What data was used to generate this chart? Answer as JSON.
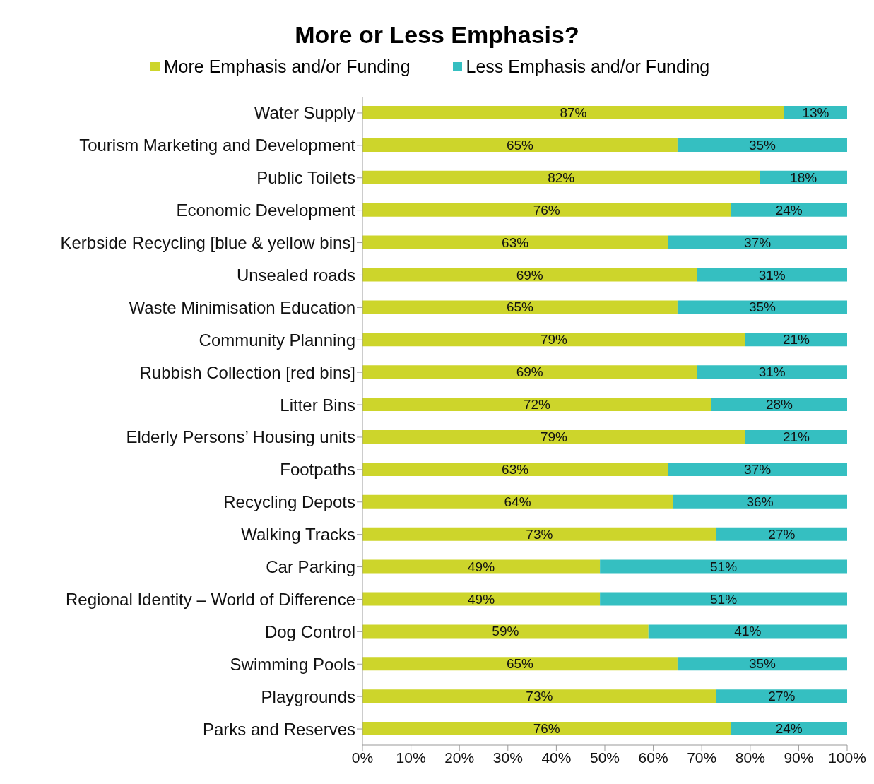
{
  "chart_data": {
    "type": "bar",
    "title": "More or Less Emphasis?",
    "orientation": "horizontal",
    "stacked": true,
    "legend": "top",
    "grid": false,
    "categories": [
      "Water Supply",
      "Tourism Marketing and Development",
      "Public Toilets",
      "Economic Development",
      "Kerbside Recycling [blue & yellow bins]",
      "Unsealed roads",
      "Waste Minimisation Education",
      "Community Planning",
      "Rubbish Collection [red bins]",
      "Litter Bins",
      "Elderly Persons’ Housing units",
      "Footpaths",
      "Recycling Depots",
      "Walking Tracks",
      "Car Parking",
      "Regional Identity – World of Difference",
      "Dog Control",
      "Swimming Pools",
      "Playgrounds",
      "Parks and Reserves"
    ],
    "series": [
      {
        "name": "More Emphasis and/or Funding",
        "color": "#cdd52b",
        "values": [
          87,
          65,
          82,
          76,
          63,
          69,
          65,
          79,
          69,
          72,
          79,
          63,
          64,
          73,
          49,
          49,
          59,
          65,
          73,
          76
        ],
        "value_labels": [
          "87%",
          "65%",
          "82%",
          "76%",
          "63%",
          "69%",
          "65%",
          "79%",
          "69%",
          "72%",
          "79%",
          "63%",
          "64%",
          "73%",
          "49%",
          "49%",
          "59%",
          "65%",
          "73%",
          "76%"
        ]
      },
      {
        "name": "Less Emphasis and/or Funding",
        "color": "#35bfc1",
        "values": [
          13,
          35,
          18,
          24,
          37,
          31,
          35,
          21,
          31,
          28,
          21,
          37,
          36,
          27,
          51,
          51,
          41,
          35,
          27,
          24
        ],
        "value_labels": [
          "13%",
          "35%",
          "18%",
          "24%",
          "37%",
          "31%",
          "35%",
          "21%",
          "31%",
          "28%",
          "21%",
          "37%",
          "36%",
          "27%",
          "51%",
          "51%",
          "41%",
          "35%",
          "27%",
          "24%"
        ]
      }
    ],
    "xlim": [
      0,
      100
    ],
    "xticks": [
      {
        "value": 0,
        "label": "0%"
      },
      {
        "value": 10,
        "label": "10%"
      },
      {
        "value": 20,
        "label": "20%"
      },
      {
        "value": 30,
        "label": "30%"
      },
      {
        "value": 40,
        "label": "40%"
      },
      {
        "value": 50,
        "label": "50%"
      },
      {
        "value": 60,
        "label": "60%"
      },
      {
        "value": 70,
        "label": "70%"
      },
      {
        "value": 80,
        "label": "80%"
      },
      {
        "value": 90,
        "label": "90%"
      },
      {
        "value": 100,
        "label": "100%"
      }
    ]
  }
}
